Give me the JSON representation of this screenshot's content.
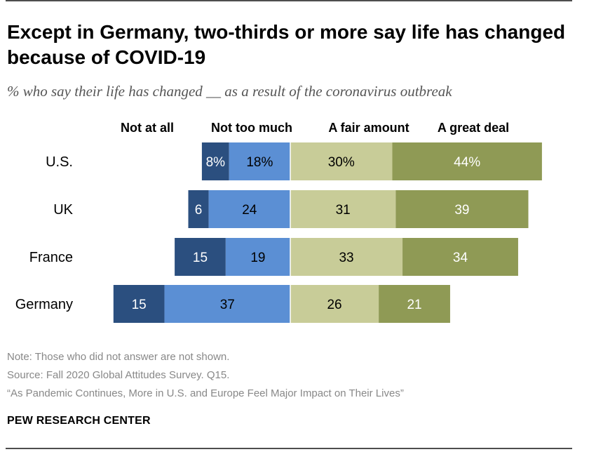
{
  "title": "Except in Germany, two-thirds or more say life has changed because of COVID-19",
  "subtitle": "% who say their life has changed __ as a result of the coronavirus outbreak",
  "colors": {
    "not_at_all": "#2b4f7f",
    "not_too_much": "#5b8fd4",
    "a_fair_amount": "#c8cc98",
    "a_great_deal": "#8f9a55"
  },
  "chart_data": {
    "type": "bar",
    "stacked": "diverging",
    "categories": [
      "U.S.",
      "UK",
      "France",
      "Germany"
    ],
    "series": [
      {
        "name": "Not at all",
        "values": [
          8,
          6,
          15,
          15
        ],
        "side": "negative",
        "label_color": "#ffffff"
      },
      {
        "name": "Not too much",
        "values": [
          18,
          24,
          19,
          37
        ],
        "side": "negative",
        "label_color": "#000000"
      },
      {
        "name": "A fair amount",
        "values": [
          30,
          31,
          33,
          26
        ],
        "side": "positive",
        "label_color": "#000000"
      },
      {
        "name": "A great deal",
        "values": [
          44,
          39,
          34,
          21
        ],
        "side": "positive",
        "label_color": "#ffffff"
      }
    ],
    "data_labels": [
      [
        "8%",
        "18%",
        "30%",
        "44%"
      ],
      [
        "6",
        "24",
        "31",
        "39"
      ],
      [
        "15",
        "19",
        "33",
        "34"
      ],
      [
        "15",
        "37",
        "26",
        "21"
      ]
    ],
    "legend": "top",
    "grid": false
  },
  "notes": {
    "note": "Note: Those who did not answer are not shown.",
    "source": "Source: Fall 2020 Global Attitudes Survey. Q15.",
    "report": "“As Pandemic Continues, More in U.S. and Europe Feel Major Impact on Their Lives”"
  },
  "brand": "PEW RESEARCH CENTER"
}
